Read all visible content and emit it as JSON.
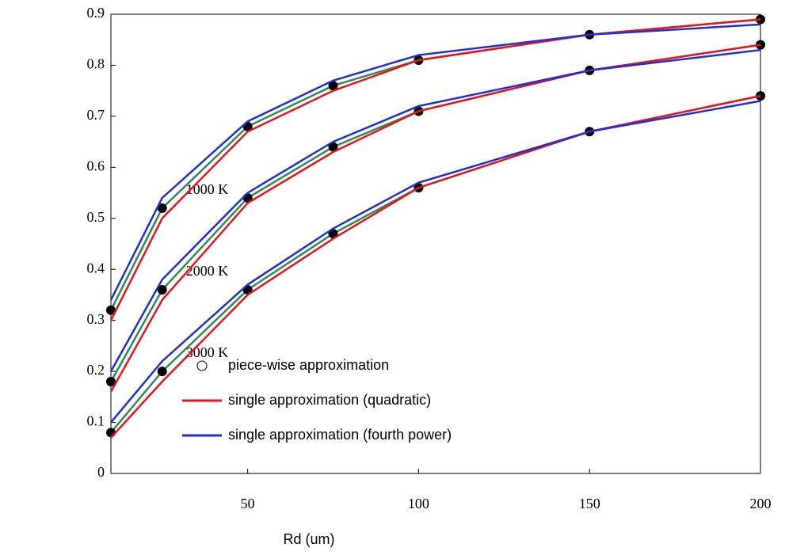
{
  "chart_data": {
    "type": "line",
    "x_label": "Rd (um)",
    "x": [
      10,
      25,
      50,
      75,
      100,
      150,
      200
    ],
    "xlim": [
      10,
      200
    ],
    "xticks": [
      50,
      100,
      150,
      200
    ],
    "ylim": [
      0,
      0.9
    ],
    "yticks": [
      0,
      0.1,
      0.2,
      0.3,
      0.4,
      0.5,
      0.6,
      0.7,
      0.8,
      0.9
    ],
    "series": [
      {
        "name": "piece-wise approximation",
        "label": "1000 K",
        "color": "#2e8b57",
        "markers": true,
        "values": [
          0.32,
          0.52,
          0.68,
          0.76,
          0.81,
          0.86,
          0.89
        ]
      },
      {
        "name": "single approximation (quadratic)",
        "label": "1000 K",
        "color": "#e8141c",
        "markers": false,
        "values": [
          0.3,
          0.5,
          0.67,
          0.75,
          0.81,
          0.86,
          0.89
        ]
      },
      {
        "name": "single approximation (fourth power)",
        "label": "1000 K",
        "color": "#1f2fd6",
        "markers": false,
        "values": [
          0.34,
          0.54,
          0.69,
          0.77,
          0.82,
          0.86,
          0.88
        ]
      },
      {
        "name": "piece-wise approximation",
        "label": "2000 K",
        "color": "#2e8b57",
        "markers": true,
        "values": [
          0.18,
          0.36,
          0.54,
          0.64,
          0.71,
          0.79,
          0.84
        ]
      },
      {
        "name": "single approximation (quadratic)",
        "label": "2000 K",
        "color": "#e8141c",
        "markers": false,
        "values": [
          0.16,
          0.34,
          0.53,
          0.63,
          0.71,
          0.79,
          0.84
        ]
      },
      {
        "name": "single approximation (fourth power)",
        "label": "2000 K",
        "color": "#1f2fd6",
        "markers": false,
        "values": [
          0.2,
          0.38,
          0.55,
          0.65,
          0.72,
          0.79,
          0.83
        ]
      },
      {
        "name": "piece-wise approximation",
        "label": "3000 K",
        "color": "#2e8b57",
        "markers": true,
        "values": [
          0.08,
          0.2,
          0.36,
          0.47,
          0.56,
          0.67,
          0.74
        ]
      },
      {
        "name": "single approximation (quadratic)",
        "label": "3000 K",
        "color": "#e8141c",
        "markers": false,
        "values": [
          0.07,
          0.18,
          0.35,
          0.46,
          0.56,
          0.67,
          0.74
        ]
      },
      {
        "name": "single approximation (fourth power)",
        "label": "3000 K",
        "color": "#1f2fd6",
        "markers": false,
        "values": [
          0.1,
          0.22,
          0.37,
          0.48,
          0.57,
          0.67,
          0.73
        ]
      }
    ]
  }
}
